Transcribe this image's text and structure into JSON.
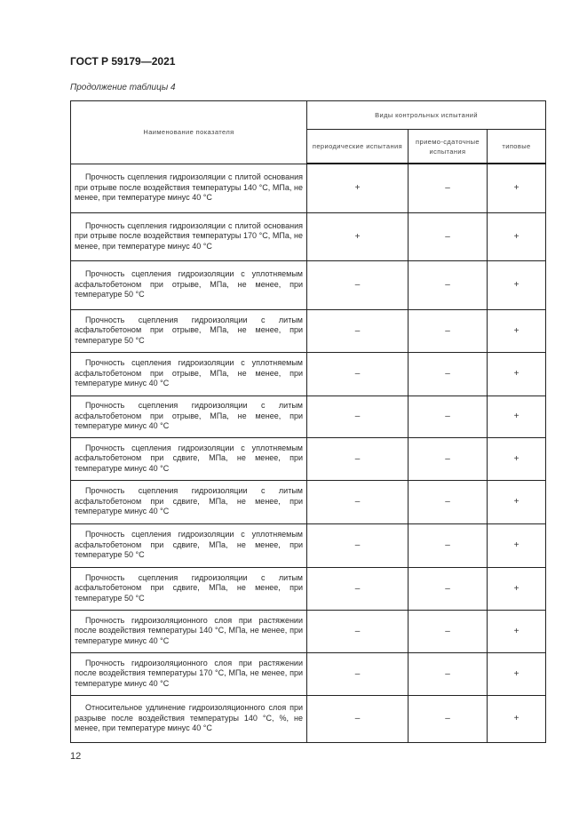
{
  "header": {
    "title": "ГОСТ Р 59179—2021",
    "caption": "Продолжение таблицы 4"
  },
  "table": {
    "col_name": "Наименование показателя",
    "col_group": "Виды контрольных испытаний",
    "sub_cols": [
      "периодические испытания",
      "приемо-сдаточные испытания",
      "типовые"
    ],
    "rows": [
      {
        "name": "Прочность сцепления гидроизоляции с плитой основания при отрыве после воздействия температуры 140 °С, МПа, не менее, при температуре минус 40 °С",
        "periodic": "+",
        "acceptance": "–",
        "type": "+"
      },
      {
        "name": "Прочность сцепления гидроизоляции с плитой основания при отрыве после воздействия температуры 170 °С, МПа, не менее, при температуре минус 40 °С",
        "periodic": "+",
        "acceptance": "–",
        "type": "+"
      },
      {
        "name": "Прочность сцепления гидроизоляции с уплотняемым асфальтобетоном при отрыве, МПа, не менее, при температуре 50 °С",
        "periodic": "–",
        "acceptance": "–",
        "type": "+"
      },
      {
        "name": "Прочность сцепления гидроизоляции с литым асфальтобетоном при отрыве, МПа, не менее, при температуре 50 °С",
        "periodic": "–",
        "acceptance": "–",
        "type": "+"
      },
      {
        "name": "Прочность сцепления гидроизоляции с уплотняемым асфальтобетоном при отрыве, МПа, не менее, при температуре минус 40 °С",
        "periodic": "–",
        "acceptance": "–",
        "type": "+"
      },
      {
        "name": "Прочность сцепления гидроизоляции с литым асфальтобетоном при отрыве, МПа, не менее, при температуре минус 40 °С",
        "periodic": "–",
        "acceptance": "–",
        "type": "+"
      },
      {
        "name": "Прочность сцепления гидроизоляции с уплотняемым асфальтобетоном при сдвиге, МПа, не менее, при температуре минус 40 °С",
        "periodic": "–",
        "acceptance": "–",
        "type": "+"
      },
      {
        "name": "Прочность сцепления гидроизоляции с литым асфальтобетоном при сдвиге, МПа, не менее, при температуре минус 40 °С",
        "periodic": "–",
        "acceptance": "–",
        "type": "+"
      },
      {
        "name": "Прочность сцепления гидроизоляции с уплотняемым асфальтобетоном при сдвиге, МПа, не менее, при температуре 50 °С",
        "periodic": "–",
        "acceptance": "–",
        "type": "+"
      },
      {
        "name": "Прочность сцепления гидроизоляции с литым асфальтобетоном при сдвиге, МПа, не менее, при температуре 50 °С",
        "periodic": "–",
        "acceptance": "–",
        "type": "+"
      },
      {
        "name": "Прочность гидроизоляционного слоя при растяжении после воздействия температуры 140 °С, МПа, не менее, при температуре минус 40 °С",
        "periodic": "–",
        "acceptance": "–",
        "type": "+"
      },
      {
        "name": "Прочность гидроизоляционного слоя при растяжении после воздействия температуры 170 °С, МПа, не менее, при температуре минус 40 °С",
        "periodic": "–",
        "acceptance": "–",
        "type": "+"
      },
      {
        "name": "Относительное удлинение гидроизоляционного слоя при разрыве после воздействия температуры 140 °С, %, не менее, при температуре минус 40 °С",
        "periodic": "–",
        "acceptance": "–",
        "type": "+"
      }
    ]
  },
  "footer": {
    "page_number": "12"
  }
}
